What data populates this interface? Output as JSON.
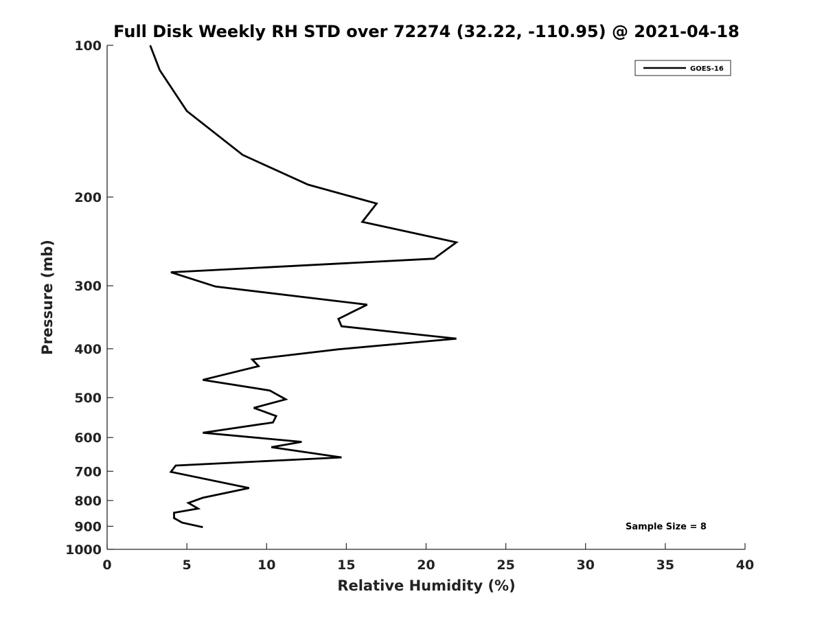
{
  "chart_data": {
    "type": "line",
    "title": "Full Disk Weekly RH STD over 72274 (32.22, -110.95) @ 2021-04-18",
    "xlabel": "Relative Humidity (%)",
    "ylabel": "Pressure (mb)",
    "xlim": [
      0,
      40
    ],
    "ylim": [
      100,
      1000
    ],
    "yscale": "log",
    "y_reversed": true,
    "grid": false,
    "xticks": [
      0,
      5,
      10,
      15,
      20,
      25,
      30,
      35,
      40
    ],
    "yticks": [
      100,
      200,
      300,
      400,
      500,
      600,
      700,
      800,
      900,
      1000
    ],
    "legend": {
      "position": "top-right",
      "entries": [
        "GOES-16"
      ]
    },
    "annotations": [
      "Sample Size = 8"
    ],
    "series": [
      {
        "name": "GOES-16",
        "color": "#000000",
        "x": [
          2.7,
          3.3,
          5.0,
          8.5,
          12.6,
          16.9,
          16.0,
          21.9,
          20.5,
          4.0,
          6.8,
          16.3,
          14.5,
          14.7,
          21.9,
          14.5,
          9.1,
          9.5,
          6.0,
          10.2,
          11.2,
          9.2,
          10.6,
          10.4,
          6.0,
          12.2,
          10.3,
          14.7,
          10.5,
          4.3,
          4.0,
          8.9,
          6.0,
          5.1,
          5.7,
          4.2,
          4.2,
          4.7,
          6.0
        ],
        "y": [
          100,
          112,
          135,
          165,
          189,
          206,
          224,
          246,
          265,
          282,
          301,
          327,
          349,
          361,
          382,
          401,
          420,
          433,
          461,
          484,
          504,
          524,
          544,
          560,
          587,
          612,
          627,
          657,
          667,
          682,
          702,
          756,
          790,
          809,
          830,
          846,
          867,
          885,
          904
        ]
      }
    ]
  }
}
